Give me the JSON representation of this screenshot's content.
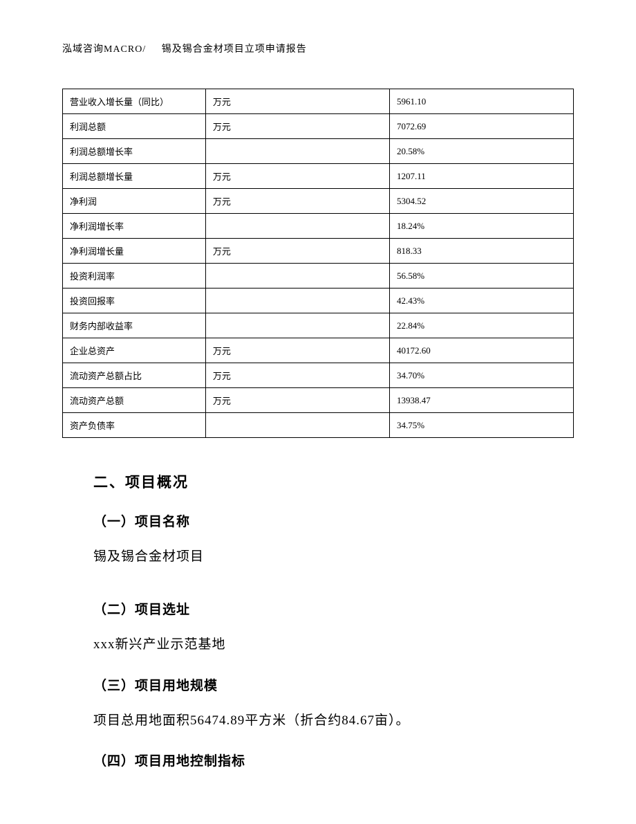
{
  "header": {
    "company": "泓域咨询MACRO/",
    "title": "锡及锡合金材项目立项申请报告"
  },
  "table": {
    "columns": [
      "label",
      "unit",
      "value"
    ],
    "column_widths": [
      "28%",
      "36%",
      "36%"
    ],
    "border_color": "#000000",
    "font_size": 13,
    "cell_padding": "8px 10px",
    "rows": [
      {
        "label": "营业收入增长量（同比）",
        "unit": "万元",
        "value": "5961.10"
      },
      {
        "label": "利润总额",
        "unit": "万元",
        "value": "7072.69"
      },
      {
        "label": "利润总额增长率",
        "unit": "",
        "value": "20.58%"
      },
      {
        "label": "利润总额增长量",
        "unit": "万元",
        "value": "1207.11"
      },
      {
        "label": "净利润",
        "unit": "万元",
        "value": "5304.52"
      },
      {
        "label": "净利润增长率",
        "unit": "",
        "value": "18.24%"
      },
      {
        "label": "净利润增长量",
        "unit": "万元",
        "value": "818.33"
      },
      {
        "label": "投资利润率",
        "unit": "",
        "value": "56.58%"
      },
      {
        "label": "投资回报率",
        "unit": "",
        "value": "42.43%"
      },
      {
        "label": "财务内部收益率",
        "unit": "",
        "value": "22.84%"
      },
      {
        "label": "企业总资产",
        "unit": "万元",
        "value": "40172.60"
      },
      {
        "label": "流动资产总额占比",
        "unit": "万元",
        "value": "34.70%"
      },
      {
        "label": "流动资产总额",
        "unit": "万元",
        "value": "13938.47"
      },
      {
        "label": "资产负债率",
        "unit": "",
        "value": "34.75%"
      }
    ]
  },
  "content": {
    "section_heading": "二、项目概况",
    "sections": [
      {
        "heading": "（一）项目名称",
        "text": "锡及锡合金材项目"
      },
      {
        "heading": "（二）项目选址",
        "text": "xxx新兴产业示范基地"
      },
      {
        "heading": "（三）项目用地规模",
        "text": "项目总用地面积56474.89平方米（折合约84.67亩）。"
      },
      {
        "heading": "（四）项目用地控制指标",
        "text": ""
      }
    ]
  },
  "styles": {
    "background_color": "#ffffff",
    "text_color": "#000000",
    "heading_font": "SimHei",
    "body_font": "SimSun",
    "section_heading_fontsize": 21,
    "sub_heading_fontsize": 19,
    "body_fontsize": 19,
    "header_fontsize": 14
  }
}
